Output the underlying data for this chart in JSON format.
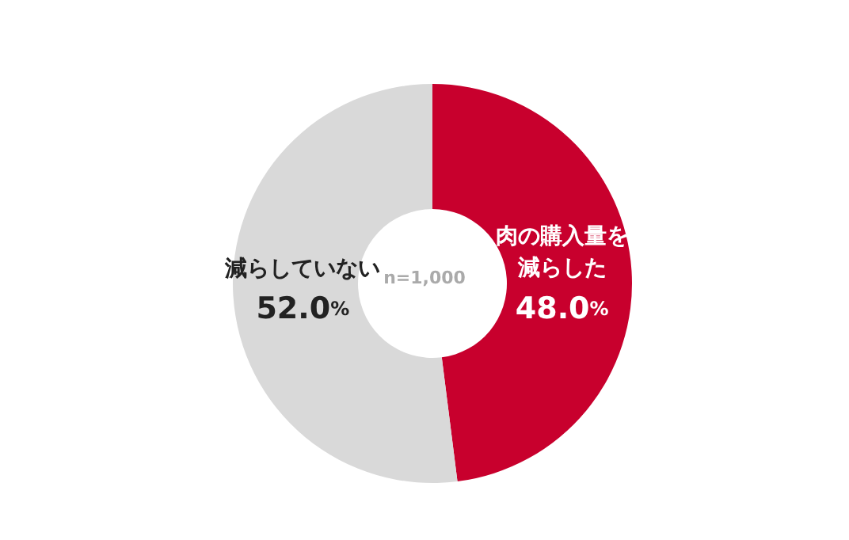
{
  "chart_data": {
    "type": "donut",
    "categories": [
      "肉の購入量を減らした",
      "減らしていない"
    ],
    "values": [
      48.0,
      52.0
    ],
    "colors": [
      "#c8002d",
      "#d9d9d9"
    ],
    "value_labels": [
      "48.0%",
      "52.0%"
    ],
    "annotations": [
      "n=1,000"
    ]
  }
}
